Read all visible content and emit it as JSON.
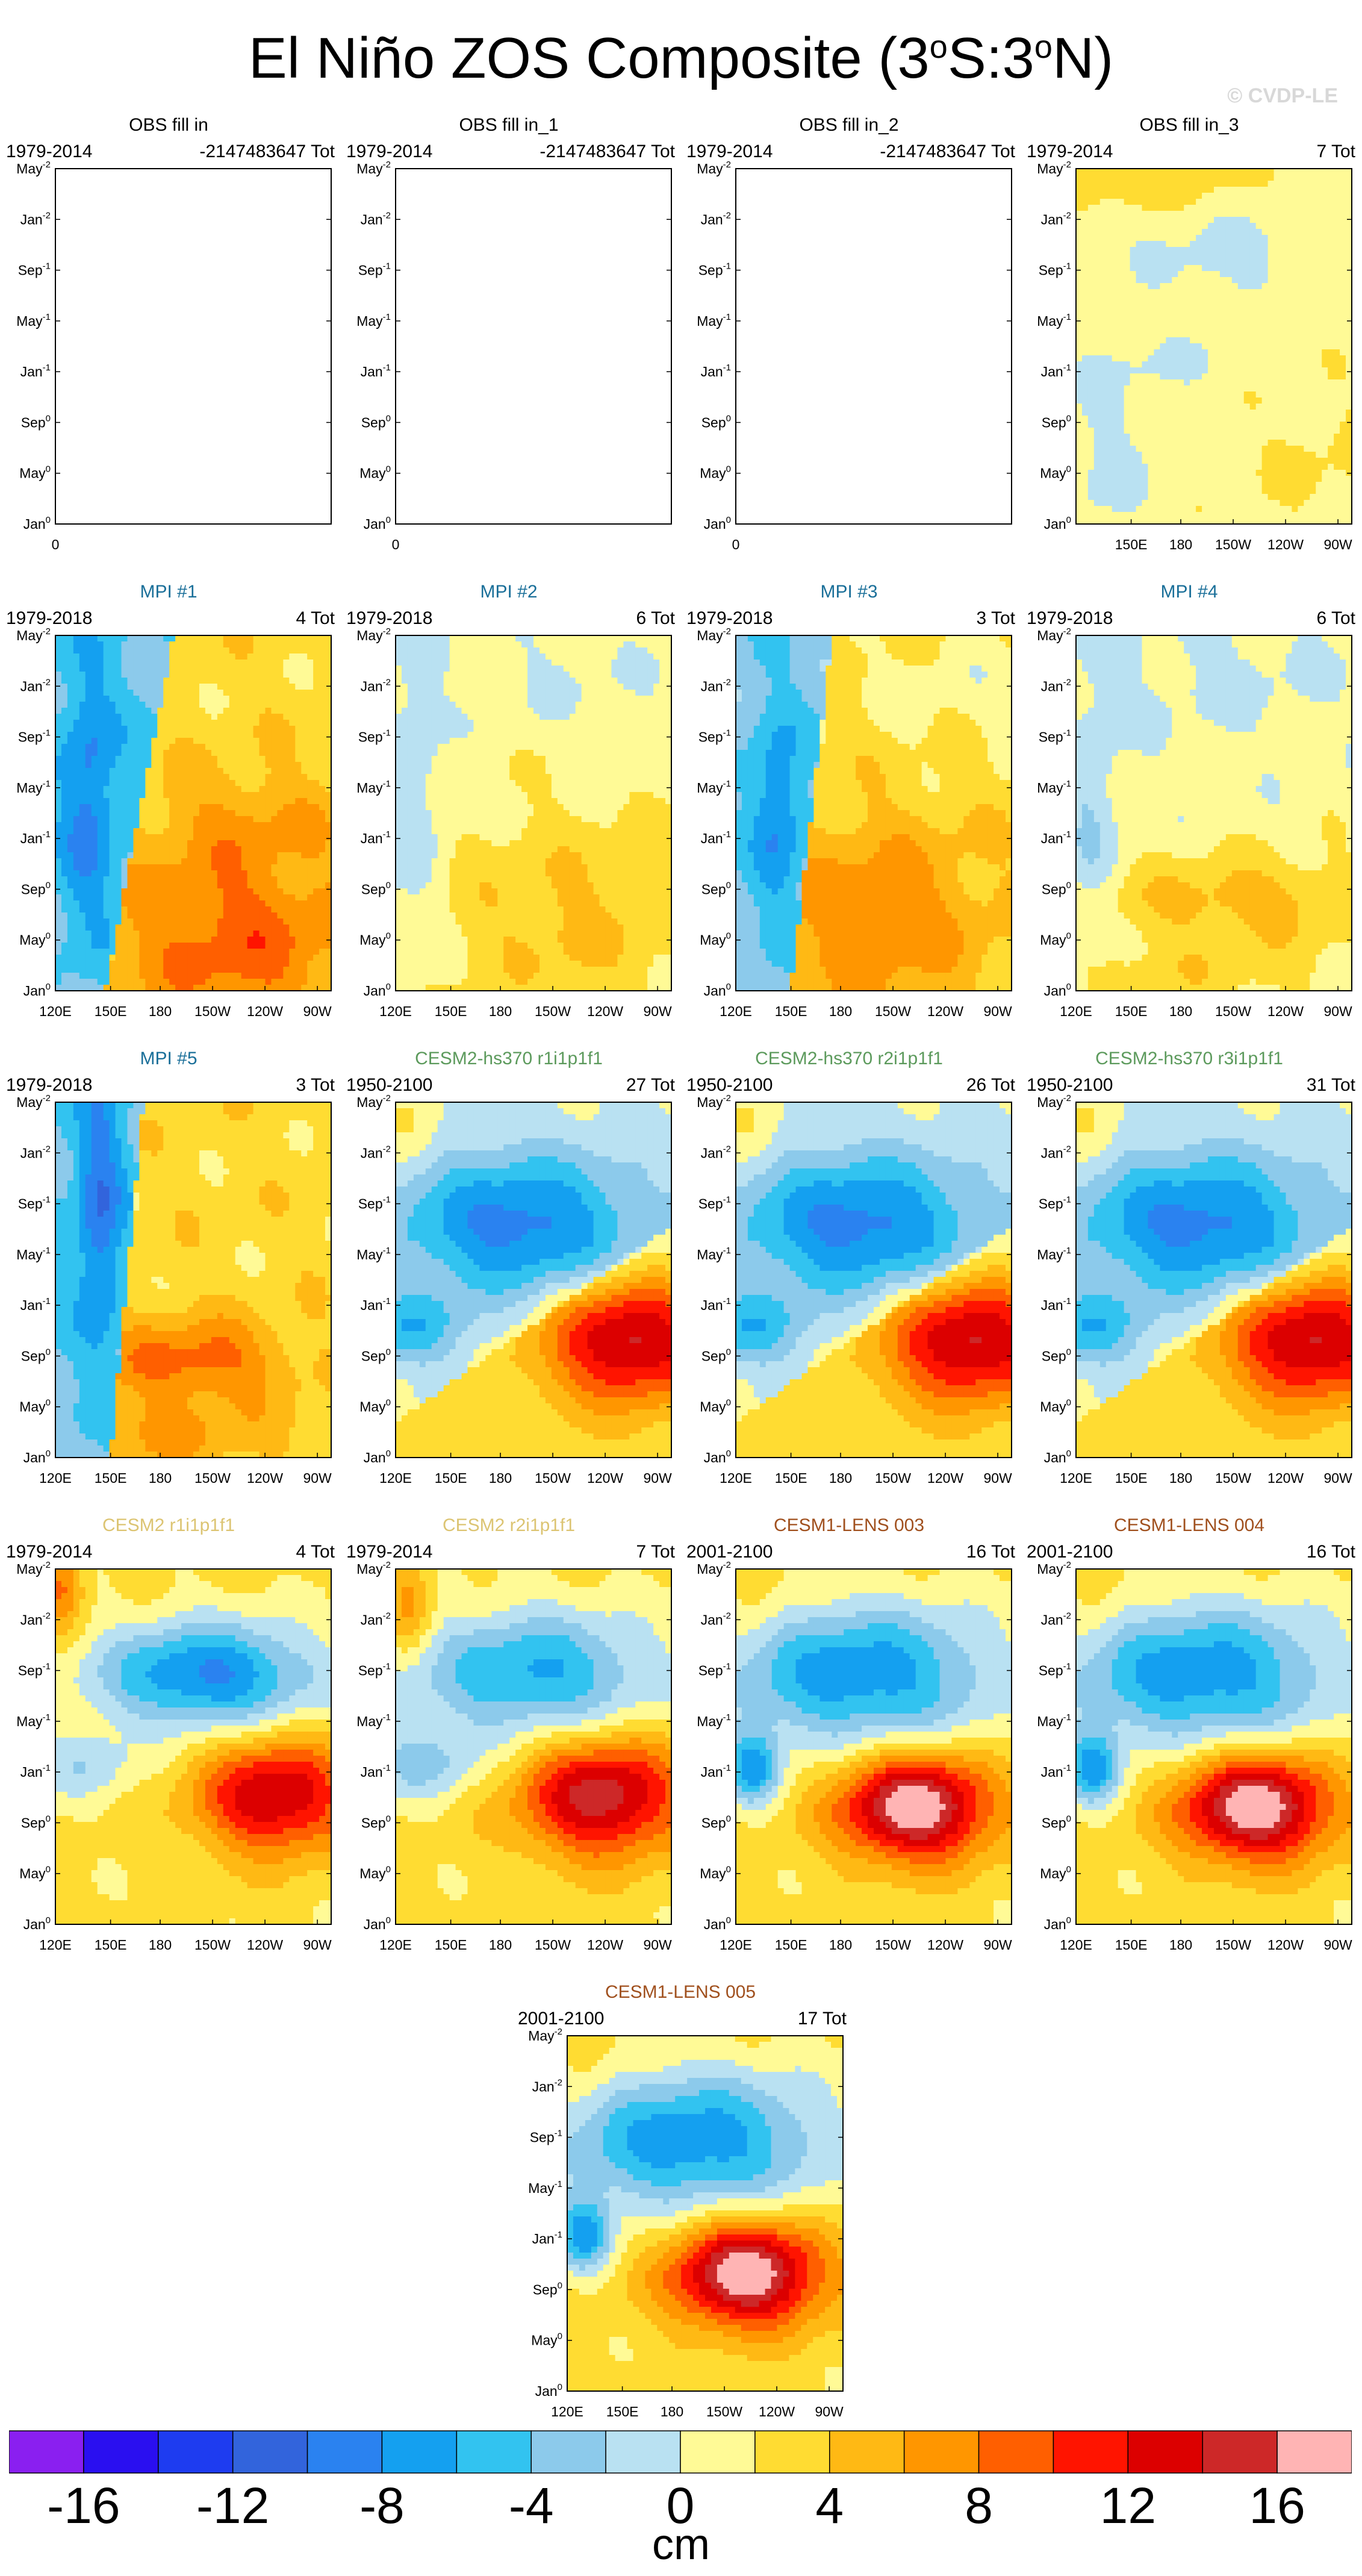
{
  "figure": {
    "title_prefix": "El Niño ZOS Composite (3",
    "title_deg1": "o",
    "title_mid": "S:3",
    "title_deg2": "o",
    "title_suffix": "N)",
    "watermark": "© CVDP-LE"
  },
  "axes": {
    "y_ticks": [
      {
        "label": "May",
        "sup": "-2"
      },
      {
        "label": "Jan",
        "sup": "-2"
      },
      {
        "label": "Sep",
        "sup": "-1"
      },
      {
        "label": "May",
        "sup": "-1"
      },
      {
        "label": "Jan",
        "sup": "-1"
      },
      {
        "label": "Sep",
        "sup": "0"
      },
      {
        "label": "May",
        "sup": "0"
      },
      {
        "label": "Jan",
        "sup": "0"
      }
    ],
    "x_ticks": [
      "120E",
      "150E",
      "180",
      "150W",
      "120W",
      "90W"
    ],
    "x_ticks_obs3": [
      "150E",
      "180",
      "150W",
      "120W",
      "90W"
    ],
    "empty_x_tick": "0"
  },
  "chart_data": [
    {
      "type": "heatmap",
      "title": "OBS fill in",
      "title_color": "#000000",
      "period": "1979-2014",
      "count": "-2147483647 Tot",
      "pattern": "empty"
    },
    {
      "type": "heatmap",
      "title": "OBS fill in_1",
      "title_color": "#000000",
      "period": "1979-2014",
      "count": "-2147483647 Tot",
      "pattern": "empty"
    },
    {
      "type": "heatmap",
      "title": "OBS fill in_2",
      "title_color": "#000000",
      "period": "1979-2014",
      "count": "-2147483647 Tot",
      "pattern": "empty"
    },
    {
      "type": "heatmap",
      "title": "OBS fill in_3",
      "title_color": "#000000",
      "period": "1979-2014",
      "count": "7 Tot",
      "pattern": "obs3"
    },
    {
      "type": "heatmap",
      "title": "MPI #1",
      "title_color": "#1a6f99",
      "period": "1979-2018",
      "count": "4 Tot",
      "pattern": "mpi_strong"
    },
    {
      "type": "heatmap",
      "title": "MPI #2",
      "title_color": "#1a6f99",
      "period": "1979-2018",
      "count": "6 Tot",
      "pattern": "mpi_weak"
    },
    {
      "type": "heatmap",
      "title": "MPI #3",
      "title_color": "#1a6f99",
      "period": "1979-2018",
      "count": "3 Tot",
      "pattern": "mpi_mid"
    },
    {
      "type": "heatmap",
      "title": "MPI #4",
      "title_color": "#1a6f99",
      "period": "1979-2018",
      "count": "6 Tot",
      "pattern": "mpi_weak2"
    },
    {
      "type": "heatmap",
      "title": "MPI #5",
      "title_color": "#1a6f99",
      "period": "1979-2018",
      "count": "3 Tot",
      "pattern": "mpi5"
    },
    {
      "type": "heatmap",
      "title": "CESM2-hs370 r1i1p1f1",
      "title_color": "#5c9a5c",
      "period": "1950-2100",
      "count": "27 Tot",
      "pattern": "cesm"
    },
    {
      "type": "heatmap",
      "title": "CESM2-hs370 r2i1p1f1",
      "title_color": "#5c9a5c",
      "period": "1950-2100",
      "count": "26 Tot",
      "pattern": "cesm"
    },
    {
      "type": "heatmap",
      "title": "CESM2-hs370 r3i1p1f1",
      "title_color": "#5c9a5c",
      "period": "1950-2100",
      "count": "31 Tot",
      "pattern": "cesm"
    },
    {
      "type": "heatmap",
      "title": "CESM2 r1i1p1f1",
      "title_color": "#dcc472",
      "period": "1979-2014",
      "count": "4 Tot",
      "pattern": "cesm2a"
    },
    {
      "type": "heatmap",
      "title": "CESM2 r2i1p1f1",
      "title_color": "#dcc472",
      "period": "1979-2014",
      "count": "7 Tot",
      "pattern": "cesm2b"
    },
    {
      "type": "heatmap",
      "title": "CESM1-LENS 003",
      "title_color": "#a0501e",
      "period": "2001-2100",
      "count": "16 Tot",
      "pattern": "lens"
    },
    {
      "type": "heatmap",
      "title": "CESM1-LENS 004",
      "title_color": "#a0501e",
      "period": "2001-2100",
      "count": "16 Tot",
      "pattern": "lens"
    },
    {
      "type": "heatmap",
      "title": "CESM1-LENS 005",
      "title_color": "#a0501e",
      "period": "2001-2100",
      "count": "17 Tot",
      "pattern": "lens"
    }
  ],
  "colorbar": {
    "unit": "cm",
    "levels": [
      -18,
      -16,
      -14,
      -12,
      -10,
      -8,
      -6,
      -4,
      -2,
      0,
      2,
      4,
      6,
      8,
      10,
      12,
      14,
      16,
      18
    ],
    "colors": [
      "#8a1ff0",
      "#2a0ff0",
      "#1e3cf0",
      "#3264dc",
      "#2a82f0",
      "#14a0f0",
      "#32c3f0",
      "#8ccaeb",
      "#b9e1f2",
      "#fffa96",
      "#ffdc32",
      "#ffb914",
      "#ff9600",
      "#ff5f00",
      "#ff1400",
      "#dc0000",
      "#cd2828",
      "#ffb4b4"
    ],
    "tick_labels": [
      "-16",
      "-12",
      "-8",
      "-4",
      "0",
      "4",
      "8",
      "12",
      "16"
    ],
    "tick_values": [
      -16,
      -12,
      -8,
      -4,
      0,
      4,
      8,
      12,
      16
    ]
  }
}
